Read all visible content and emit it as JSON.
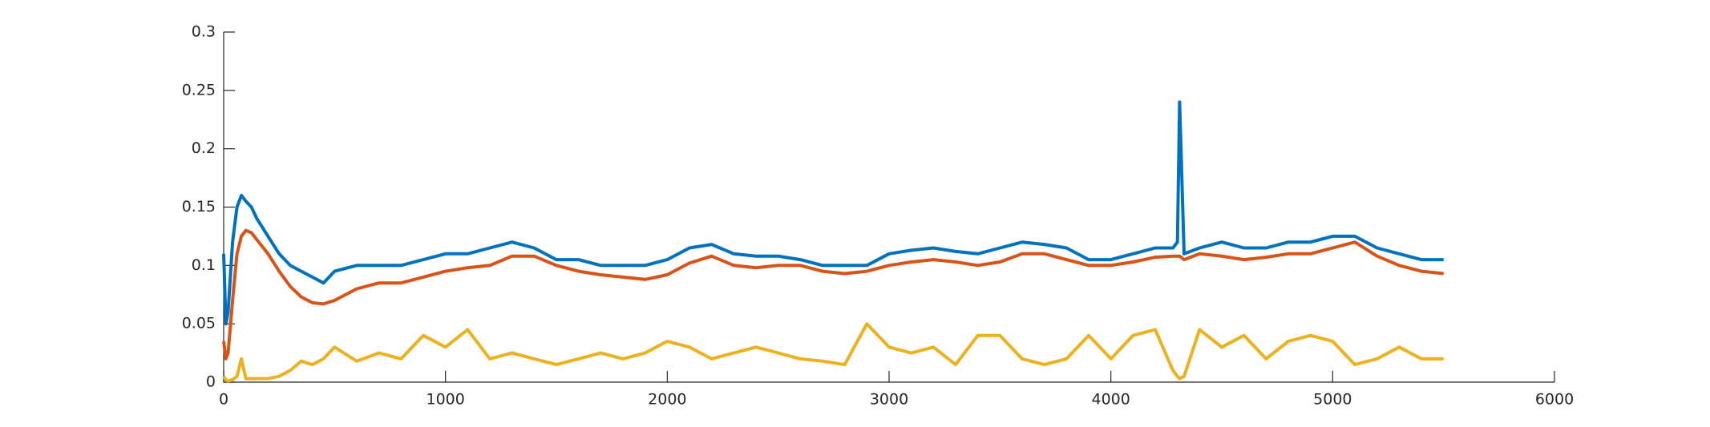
{
  "chart_data": {
    "type": "line",
    "x": [
      0,
      10,
      20,
      40,
      60,
      80,
      100,
      125,
      150,
      200,
      250,
      300,
      350,
      400,
      450,
      500,
      600,
      700,
      800,
      900,
      1000,
      1100,
      1200,
      1300,
      1400,
      1500,
      1600,
      1700,
      1800,
      1900,
      2000,
      2100,
      2200,
      2300,
      2400,
      2500,
      2600,
      2700,
      2800,
      2900,
      3000,
      3100,
      3200,
      3300,
      3400,
      3500,
      3600,
      3700,
      3800,
      3900,
      4000,
      4100,
      4200,
      4280,
      4300,
      4310,
      4330,
      4400,
      4500,
      4600,
      4700,
      4800,
      4900,
      5000,
      5100,
      5200,
      5300,
      5400,
      5500
    ],
    "series": [
      {
        "color": "#0072BD",
        "values": [
          0.11,
          0.05,
          0.06,
          0.12,
          0.15,
          0.16,
          0.155,
          0.15,
          0.14,
          0.125,
          0.11,
          0.1,
          0.095,
          0.09,
          0.085,
          0.095,
          0.1,
          0.1,
          0.1,
          0.105,
          0.11,
          0.11,
          0.115,
          0.12,
          0.115,
          0.105,
          0.105,
          0.1,
          0.1,
          0.1,
          0.105,
          0.115,
          0.118,
          0.11,
          0.108,
          0.108,
          0.105,
          0.1,
          0.1,
          0.1,
          0.11,
          0.113,
          0.115,
          0.112,
          0.11,
          0.115,
          0.12,
          0.118,
          0.115,
          0.105,
          0.105,
          0.11,
          0.115,
          0.115,
          0.12,
          0.24,
          0.11,
          0.115,
          0.12,
          0.115,
          0.115,
          0.12,
          0.12,
          0.125,
          0.125,
          0.115,
          0.11,
          0.105,
          0.105
        ]
      },
      {
        "color": "#D95319",
        "values": [
          0.035,
          0.02,
          0.025,
          0.07,
          0.11,
          0.125,
          0.13,
          0.128,
          0.122,
          0.11,
          0.095,
          0.082,
          0.073,
          0.068,
          0.067,
          0.07,
          0.08,
          0.085,
          0.085,
          0.09,
          0.095,
          0.098,
          0.1,
          0.108,
          0.108,
          0.1,
          0.095,
          0.092,
          0.09,
          0.088,
          0.092,
          0.102,
          0.108,
          0.1,
          0.098,
          0.1,
          0.1,
          0.095,
          0.093,
          0.095,
          0.1,
          0.103,
          0.105,
          0.103,
          0.1,
          0.103,
          0.11,
          0.11,
          0.105,
          0.1,
          0.1,
          0.103,
          0.107,
          0.108,
          0.108,
          0.108,
          0.105,
          0.11,
          0.108,
          0.105,
          0.107,
          0.11,
          0.11,
          0.115,
          0.12,
          0.108,
          0.1,
          0.095,
          0.093
        ]
      },
      {
        "color": "#EDB120",
        "values": [
          0.005,
          0.002,
          0.001,
          0.002,
          0.005,
          0.02,
          0.003,
          0.003,
          0.003,
          0.003,
          0.005,
          0.01,
          0.018,
          0.015,
          0.02,
          0.03,
          0.018,
          0.025,
          0.02,
          0.04,
          0.03,
          0.045,
          0.02,
          0.025,
          0.02,
          0.015,
          0.02,
          0.025,
          0.02,
          0.025,
          0.035,
          0.03,
          0.02,
          0.025,
          0.03,
          0.025,
          0.02,
          0.018,
          0.015,
          0.05,
          0.03,
          0.025,
          0.03,
          0.015,
          0.04,
          0.04,
          0.02,
          0.015,
          0.02,
          0.04,
          0.02,
          0.04,
          0.045,
          0.01,
          0.005,
          0.003,
          0.005,
          0.045,
          0.03,
          0.04,
          0.02,
          0.035,
          0.04,
          0.035,
          0.015,
          0.02,
          0.03,
          0.02,
          0.02
        ]
      }
    ],
    "xlim": [
      0,
      6000
    ],
    "xticks": [
      0,
      1000,
      2000,
      3000,
      4000,
      5000,
      6000
    ],
    "ylim": [
      0,
      0.3
    ],
    "yticks": [
      0,
      0.05,
      0.1,
      0.15,
      0.2,
      0.25,
      0.3
    ]
  }
}
